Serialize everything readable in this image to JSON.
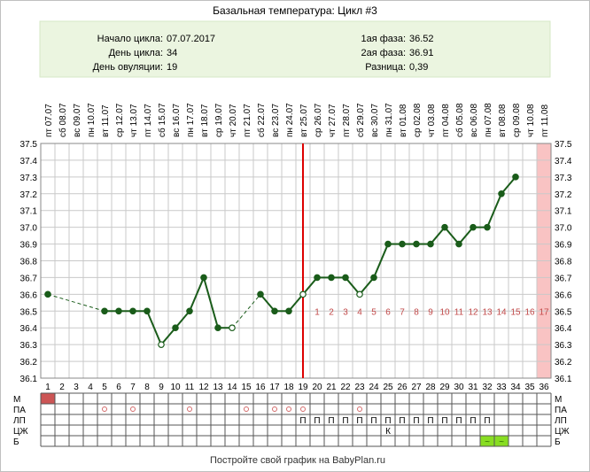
{
  "chart_data": {
    "type": "line",
    "title": "Базальная температура: Цикл #3",
    "summary": {
      "left": [
        {
          "label": "Начало цикла:",
          "value": "07.07.2017"
        },
        {
          "label": "День цикла:",
          "value": "34"
        },
        {
          "label": "День овуляции:",
          "value": "19"
        }
      ],
      "right": [
        {
          "label": "1ая фаза:",
          "value": "36.52"
        },
        {
          "label": "2ая фаза:",
          "value": "36.91"
        },
        {
          "label": "Разница:",
          "value": "0,39"
        }
      ]
    },
    "x": [
      1,
      2,
      3,
      4,
      5,
      6,
      7,
      8,
      9,
      10,
      11,
      12,
      13,
      14,
      15,
      16,
      17,
      18,
      19,
      20,
      21,
      22,
      23,
      24,
      25,
      26,
      27,
      28,
      29,
      30,
      31,
      32,
      33,
      34,
      35,
      36
    ],
    "date_labels": [
      "пт 07.07",
      "сб 08.07",
      "вс 09.07",
      "пн 10.07",
      "вт 11.07",
      "ср 12.07",
      "чт 13.07",
      "пт 14.07",
      "сб 15.07",
      "вс 16.07",
      "пн 17.07",
      "вт 18.07",
      "ср 19.07",
      "чт 20.07",
      "пт 21.07",
      "сб 22.07",
      "вс 23.07",
      "пн 24.07",
      "вт 25.07",
      "ср 26.07",
      "чт 27.07",
      "пт 28.07",
      "сб 29.07",
      "вс 30.07",
      "пн 31.07",
      "вт 01.08",
      "ср 02.08",
      "чт 03.08",
      "пт 04.08",
      "сб 05.08",
      "вс 06.08",
      "пн 07.08",
      "вт 08.08",
      "ср 09.08",
      "чт 10.08",
      "пт 11.08"
    ],
    "series": [
      {
        "values": [
          36.6,
          null,
          null,
          null,
          36.5,
          36.5,
          36.5,
          36.5,
          36.3,
          36.4,
          36.5,
          36.7,
          36.4,
          36.4,
          null,
          36.6,
          36.5,
          36.5,
          36.6,
          36.7,
          36.7,
          36.7,
          36.6,
          36.7,
          36.9,
          36.9,
          36.9,
          36.9,
          37.0,
          36.9,
          37.0,
          37.0,
          37.2,
          37.3,
          null,
          null
        ],
        "hollow_days": [
          9,
          14,
          19,
          23
        ]
      }
    ],
    "dashed_segments": [
      [
        1,
        5
      ],
      [
        14,
        16
      ]
    ],
    "ylim": [
      36.1,
      37.5
    ],
    "yticks": [
      "36.1",
      "36.2",
      "36.3",
      "36.4",
      "36.5",
      "36.6",
      "36.7",
      "36.8",
      "36.9",
      "37.0",
      "37.1",
      "37.2",
      "37.3",
      "37.4",
      "37.5"
    ],
    "ovulation_day": 19,
    "ovulation_color": "#dd0000",
    "phase2_labels": [
      "1",
      "2",
      "3",
      "4",
      "5",
      "6",
      "7",
      "8",
      "9",
      "10",
      "11",
      "12",
      "13",
      "14",
      "15",
      "16",
      "17"
    ],
    "highlight_day": 36,
    "highlight_color": "#f9c3c3",
    "line_color": "#1a5c1a",
    "grid": true,
    "symptom_rows": [
      {
        "label": "М",
        "marks": [
          {
            "day": 1,
            "kind": "fill",
            "color": "#cc5555"
          }
        ]
      },
      {
        "label": "ПА",
        "marks": [
          {
            "day": 5,
            "kind": "circle"
          },
          {
            "day": 7,
            "kind": "circle"
          },
          {
            "day": 11,
            "kind": "circle"
          },
          {
            "day": 15,
            "kind": "circle"
          },
          {
            "day": 17,
            "kind": "circle"
          },
          {
            "day": 18,
            "kind": "circle"
          },
          {
            "day": 19,
            "kind": "circle"
          },
          {
            "day": 23,
            "kind": "circle"
          }
        ]
      },
      {
        "label": "ЛП",
        "marks": [
          {
            "day": 19,
            "kind": "text",
            "text": "П"
          },
          {
            "day": 20,
            "kind": "text",
            "text": "П"
          },
          {
            "day": 21,
            "kind": "text",
            "text": "П"
          },
          {
            "day": 22,
            "kind": "text",
            "text": "П"
          },
          {
            "day": 23,
            "kind": "text",
            "text": "П"
          },
          {
            "day": 24,
            "kind": "text",
            "text": "П"
          },
          {
            "day": 25,
            "kind": "text",
            "text": "П"
          },
          {
            "day": 26,
            "kind": "text",
            "text": "П"
          },
          {
            "day": 27,
            "kind": "text",
            "text": "П"
          },
          {
            "day": 28,
            "kind": "text",
            "text": "П"
          },
          {
            "day": 29,
            "kind": "text",
            "text": "П"
          },
          {
            "day": 30,
            "kind": "text",
            "text": "П"
          },
          {
            "day": 31,
            "kind": "text",
            "text": "П"
          },
          {
            "day": 32,
            "kind": "text",
            "text": "П"
          }
        ]
      },
      {
        "label": "ЦЖ",
        "marks": [
          {
            "day": 25,
            "kind": "text",
            "text": "К"
          }
        ]
      },
      {
        "label": "Б",
        "marks": [
          {
            "day": 32,
            "kind": "fill",
            "color": "#88dd22",
            "text": "~"
          },
          {
            "day": 33,
            "kind": "fill",
            "color": "#88dd22",
            "text": "~"
          }
        ]
      }
    ]
  },
  "footer": "Постройте свой график на BabyPlan.ru"
}
